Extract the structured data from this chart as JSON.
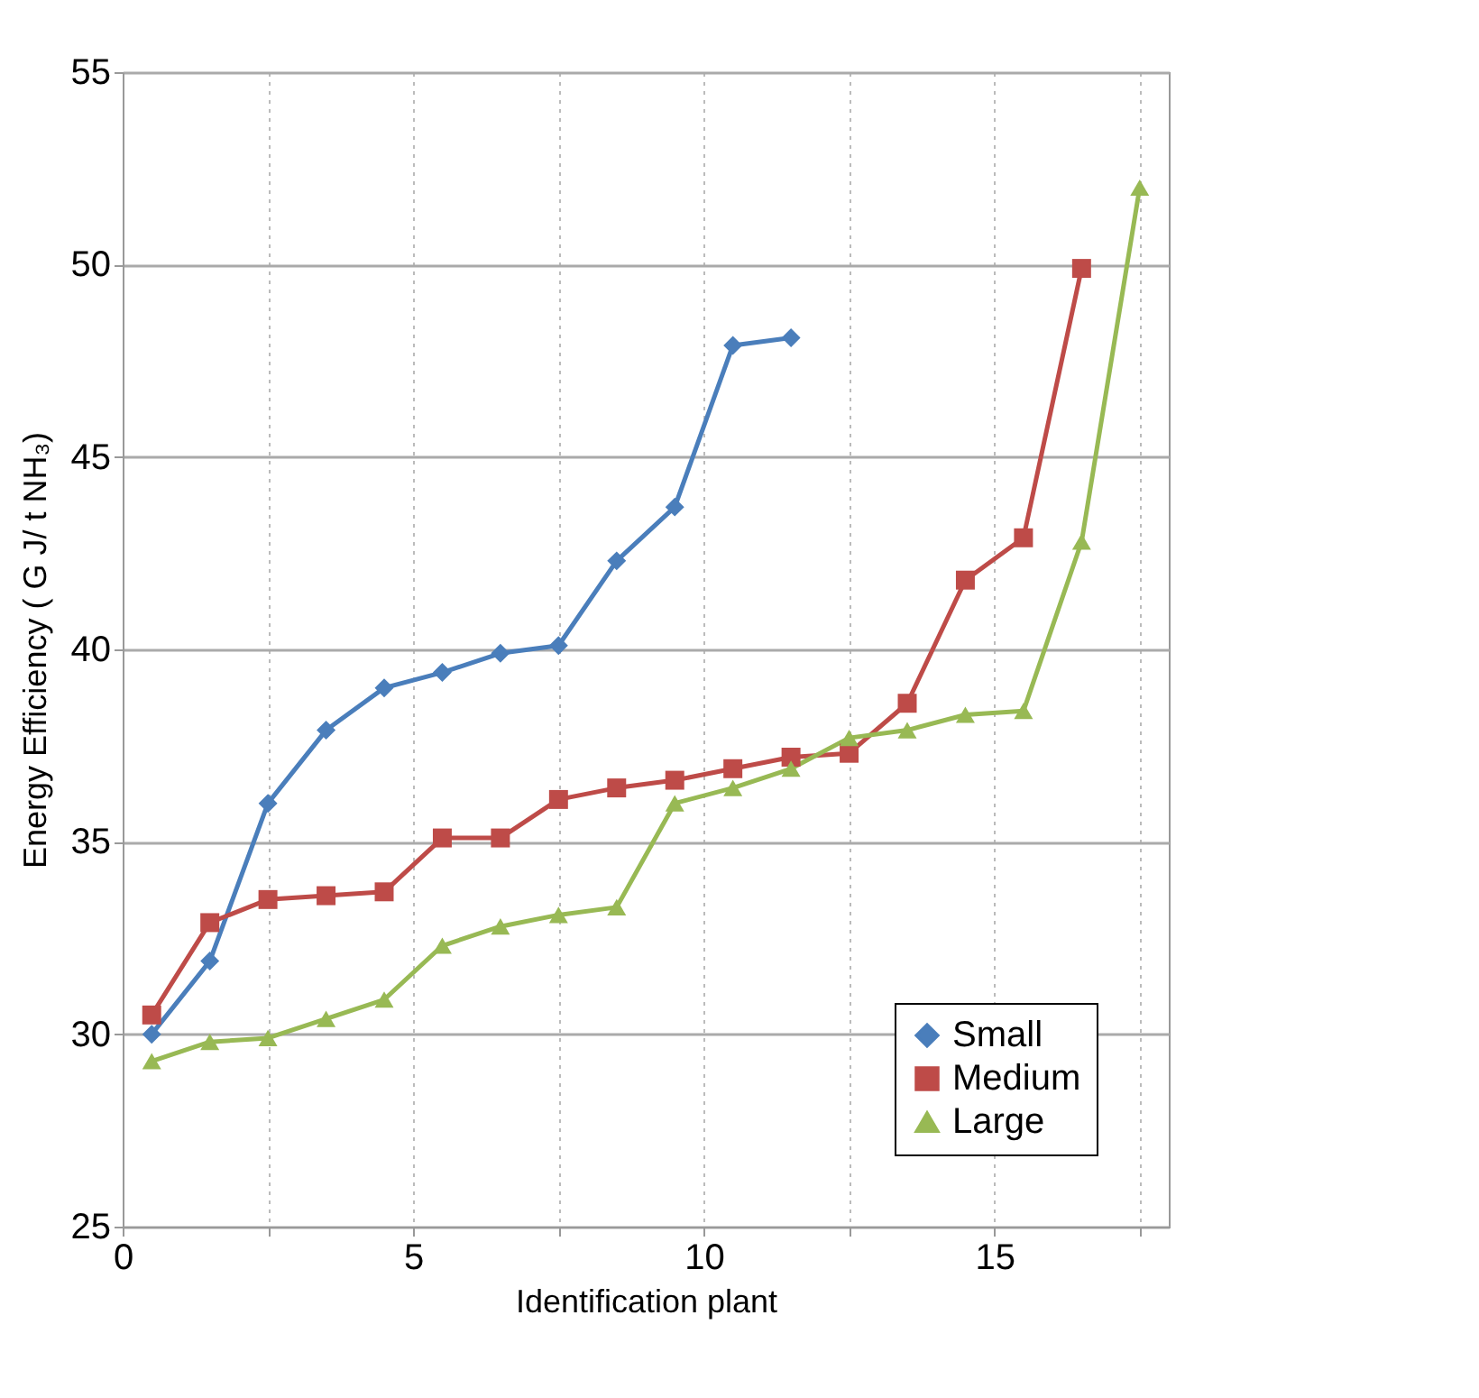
{
  "chart_data": {
    "type": "line",
    "xlabel": "Identification plant",
    "ylabel": "Energy Efficiency  ( G J/ t NH₃)",
    "xlim": [
      0,
      18
    ],
    "xticks": [
      0,
      {
        "value": 2.5,
        "label": null
      },
      5,
      {
        "value": 7.5,
        "label": null
      },
      10,
      {
        "value": 12.5,
        "label": null
      },
      15,
      {
        "value": 17.5,
        "label": null
      }
    ],
    "ylim": [
      25,
      55
    ],
    "yticks": [
      25,
      30,
      35,
      40,
      45,
      50,
      55
    ],
    "grid": true,
    "legend": "bottom right",
    "series": [
      {
        "name": "Small",
        "color": "#4a7ebb",
        "marker": "diamond",
        "x": [
          0.5,
          1.5,
          2.5,
          3.5,
          4.5,
          5.5,
          6.5,
          7.5,
          8.5,
          9.5,
          10.5,
          11.5
        ],
        "values": [
          30.0,
          31.9,
          36.0,
          37.9,
          39.0,
          39.4,
          39.9,
          40.1,
          42.3,
          43.7,
          47.9,
          48.1
        ]
      },
      {
        "name": "Medium",
        "color": "#be4b48",
        "marker": "square",
        "x": [
          0.5,
          1.5,
          2.5,
          3.5,
          4.5,
          5.5,
          6.5,
          7.5,
          8.5,
          9.5,
          10.5,
          11.5,
          12.5,
          13.5,
          14.5,
          15.5,
          16.5
        ],
        "values": [
          30.5,
          32.9,
          33.5,
          33.6,
          33.7,
          35.1,
          35.1,
          36.1,
          36.4,
          36.6,
          36.9,
          37.2,
          37.3,
          38.6,
          41.8,
          42.9,
          49.9
        ]
      },
      {
        "name": "Large",
        "color": "#98b954",
        "marker": "triangle",
        "x": [
          0.5,
          1.5,
          2.5,
          3.5,
          4.5,
          5.5,
          6.5,
          7.5,
          8.5,
          9.5,
          10.5,
          11.5,
          12.5,
          13.5,
          14.5,
          15.5,
          16.5,
          17.5
        ],
        "values": [
          29.3,
          29.8,
          29.9,
          30.4,
          30.9,
          32.3,
          32.8,
          33.1,
          33.3,
          36.0,
          36.4,
          36.9,
          37.7,
          37.9,
          38.3,
          38.4,
          42.8,
          52.0
        ]
      }
    ]
  }
}
